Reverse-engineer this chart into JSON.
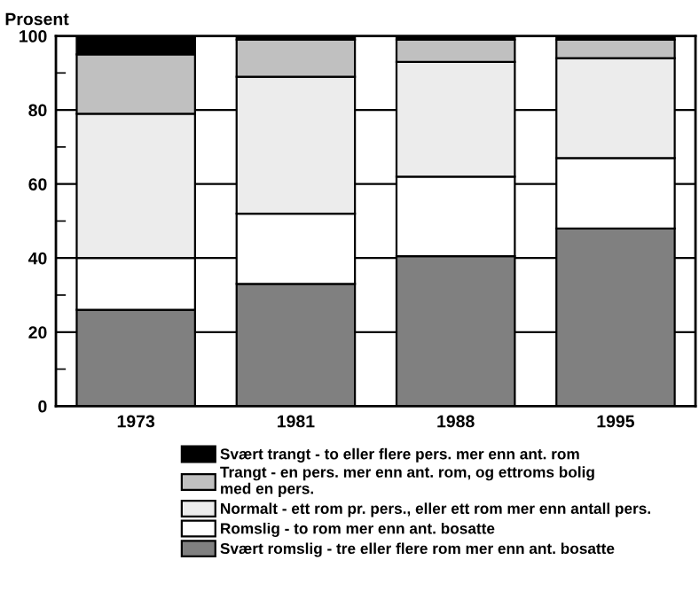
{
  "chart_data": {
    "type": "bar",
    "stacked": true,
    "ylabel": "Prosent",
    "categories": [
      "1973",
      "1981",
      "1988",
      "1995"
    ],
    "series": [
      {
        "name": "Svært romslig - tre eller flere rom mer enn ant. bosatte",
        "color": "#808080",
        "values": [
          26,
          33,
          40.5,
          48
        ]
      },
      {
        "name": "Romslig - to rom mer enn ant. bosatte",
        "color": "#ffffff",
        "values": [
          14,
          19,
          21.5,
          19
        ]
      },
      {
        "name": "Normalt - ett rom pr. pers., eller ett rom mer enn antall pers.",
        "color": "#ececec",
        "values": [
          39,
          37,
          31,
          27
        ]
      },
      {
        "name": "Trangt - en pers. mer enn ant. rom, og ettroms bolig\nmed en pers.",
        "color": "#c0c0c0",
        "values": [
          16,
          10,
          6,
          5
        ]
      },
      {
        "name": "Svært trangt - to eller flere pers. mer enn ant. rom",
        "color": "#000000",
        "values": [
          5,
          1,
          1,
          1
        ]
      }
    ],
    "ylim": [
      0,
      100
    ],
    "yticks": [
      0,
      {
        "value": 10,
        "label": null
      },
      20,
      {
        "value": 30,
        "label": null
      },
      40,
      {
        "value": 50,
        "label": null
      },
      60,
      {
        "value": 70,
        "label": null
      },
      80,
      {
        "value": 90,
        "label": null
      },
      100
    ],
    "grid": "y",
    "legend": "bottom"
  }
}
